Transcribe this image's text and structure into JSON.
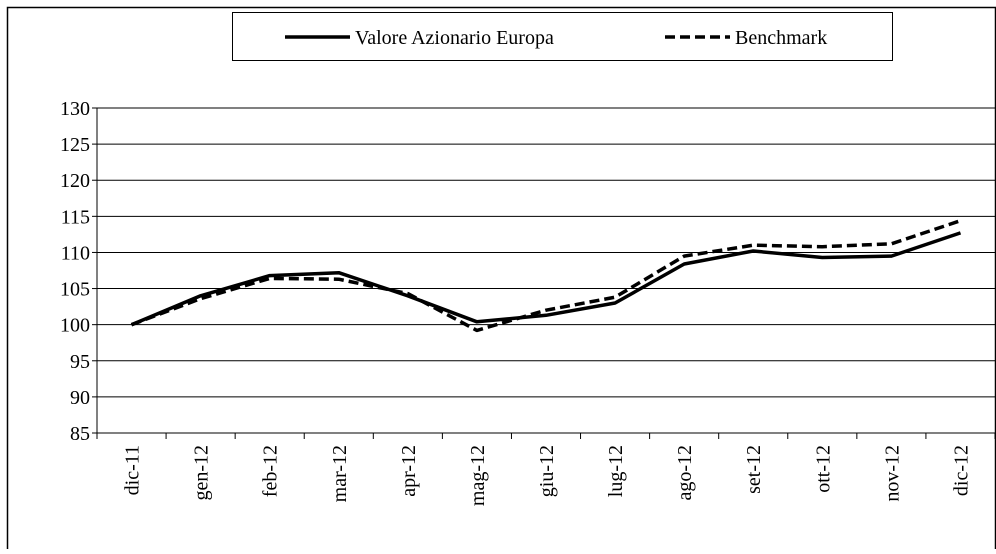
{
  "chart_data": {
    "type": "line",
    "categories": [
      "dic-11",
      "gen-12",
      "feb-12",
      "mar-12",
      "apr-12",
      "mag-12",
      "giu-12",
      "lug-12",
      "ago-12",
      "set-12",
      "ott-12",
      "nov-12",
      "dic-12"
    ],
    "series": [
      {
        "name": "Valore Azionario Europa",
        "color": "#000000",
        "linestyle": "solid",
        "values": [
          100,
          104,
          106.8,
          107.2,
          104,
          100.4,
          101.3,
          103,
          108.4,
          110.2,
          109.3,
          109.5,
          112.7
        ]
      },
      {
        "name": "Benchmark",
        "color": "#000000",
        "linestyle": "dashed",
        "values": [
          100,
          103.6,
          106.4,
          106.3,
          104.3,
          99.2,
          102,
          103.8,
          109.5,
          111,
          110.8,
          111.2,
          114.4
        ]
      }
    ],
    "ylim": [
      85,
      130
    ],
    "yticks": [
      85,
      90,
      95,
      100,
      105,
      110,
      115,
      120,
      125,
      130
    ],
    "grid": true,
    "legend": "top"
  }
}
